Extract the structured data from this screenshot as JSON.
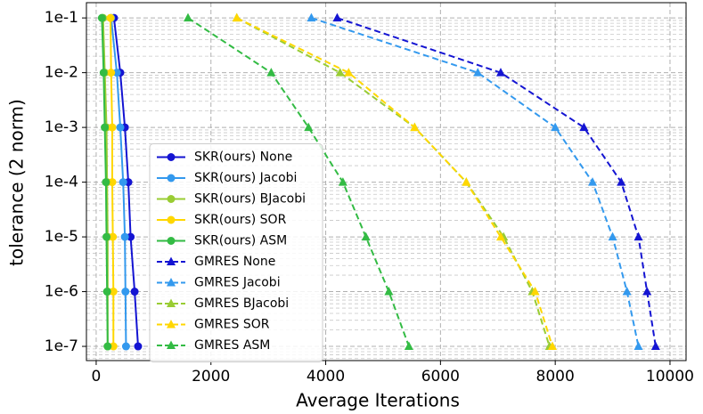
{
  "chart_data": {
    "type": "line",
    "xlabel": "Average Iterations",
    "ylabel": "tolerance (2 norm)",
    "xlim": [
      -170,
      10280
    ],
    "xticks": [
      0,
      2000,
      4000,
      6000,
      8000,
      10000
    ],
    "ylim": [
      5.5e-08,
      0.19
    ],
    "yscale": "log",
    "yticks": [
      {
        "value": 0.1,
        "label": "1e-1"
      },
      {
        "value": 0.01,
        "label": "1e-2"
      },
      {
        "value": 0.001,
        "label": "1e-3"
      },
      {
        "value": 0.0001,
        "label": "1e-4"
      },
      {
        "value": 1e-05,
        "label": "1e-5"
      },
      {
        "value": 1e-06,
        "label": "1e-6"
      },
      {
        "value": 1e-07,
        "label": "1e-7"
      }
    ],
    "grid": true,
    "minor_grid": true,
    "legend": "center left",
    "series": [
      {
        "name": "SKR(ours) None",
        "color": "#1414d2",
        "marker": "circle",
        "linestyle": "solid",
        "x": [
          310,
          420,
          500,
          560,
          600,
          670,
          730
        ],
        "values": [
          0.1,
          0.01,
          0.001,
          0.0001,
          1e-05,
          1e-06,
          1e-07
        ]
      },
      {
        "name": "SKR(ours) Jacobi",
        "color": "#3399ee",
        "marker": "circle",
        "linestyle": "solid",
        "x": [
          260,
          360,
          420,
          470,
          500,
          510,
          520
        ],
        "values": [
          0.1,
          0.01,
          0.001,
          0.0001,
          1e-05,
          1e-06,
          1e-07
        ]
      },
      {
        "name": "SKR(ours) BJacobi",
        "color": "#99cc33",
        "marker": "circle",
        "linestyle": "solid",
        "x": [
          120,
          150,
          180,
          190,
          200,
          200,
          200
        ],
        "values": [
          0.1,
          0.01,
          0.001,
          0.0001,
          1e-05,
          1e-06,
          1e-07
        ]
      },
      {
        "name": "SKR(ours) SOR",
        "color": "#ffd700",
        "marker": "circle",
        "linestyle": "solid",
        "x": [
          250,
          260,
          280,
          280,
          290,
          300,
          300
        ],
        "values": [
          0.1,
          0.01,
          0.001,
          0.0001,
          1e-05,
          1e-06,
          1e-07
        ]
      },
      {
        "name": "SKR(ours) ASM",
        "color": "#33bb44",
        "marker": "circle",
        "linestyle": "solid",
        "x": [
          100,
          130,
          150,
          170,
          180,
          190,
          200
        ],
        "values": [
          0.1,
          0.01,
          0.001,
          0.0001,
          1e-05,
          1e-06,
          1e-07
        ]
      },
      {
        "name": "GMRES None",
        "color": "#1414d2",
        "marker": "triangle",
        "linestyle": "dashed",
        "x": [
          4200,
          7050,
          8500,
          9150,
          9450,
          9600,
          9750
        ],
        "values": [
          0.1,
          0.01,
          0.001,
          0.0001,
          1e-05,
          1e-06,
          1e-07
        ]
      },
      {
        "name": "GMRES Jacobi",
        "color": "#3399ee",
        "marker": "triangle",
        "linestyle": "dashed",
        "x": [
          3750,
          6650,
          8000,
          8650,
          9000,
          9250,
          9450
        ],
        "values": [
          0.1,
          0.01,
          0.001,
          0.0001,
          1e-05,
          1e-06,
          1e-07
        ]
      },
      {
        "name": "GMRES BJacobi",
        "color": "#99cc33",
        "marker": "triangle",
        "linestyle": "dashed",
        "x": [
          2450,
          4250,
          5550,
          6450,
          7100,
          7600,
          7900
        ],
        "values": [
          0.1,
          0.01,
          0.001,
          0.0001,
          1e-05,
          1e-06,
          1e-07
        ]
      },
      {
        "name": "GMRES SOR",
        "color": "#ffd700",
        "marker": "triangle",
        "linestyle": "dashed",
        "x": [
          2450,
          4400,
          5550,
          6450,
          7050,
          7650,
          7950
        ],
        "values": [
          0.1,
          0.01,
          0.001,
          0.0001,
          1e-05,
          1e-06,
          1e-07
        ]
      },
      {
        "name": "GMRES ASM",
        "color": "#33bb44",
        "marker": "triangle",
        "linestyle": "dashed",
        "x": [
          1600,
          3050,
          3700,
          4300,
          4700,
          5100,
          5450
        ],
        "values": [
          0.1,
          0.01,
          0.001,
          0.0001,
          1e-05,
          1e-06,
          1e-07
        ]
      }
    ]
  }
}
